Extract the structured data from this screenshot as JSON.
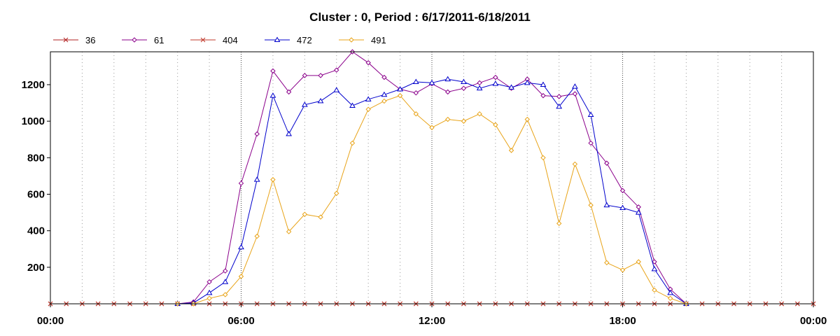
{
  "chart_data": {
    "type": "line",
    "title": "Cluster : 0, Period : 6/17/2011-6/18/2011",
    "xlabel": "",
    "ylabel": "",
    "x_ticks": [
      "00:00",
      "06:00",
      "12:00",
      "18:00",
      "00:00"
    ],
    "y_ticks": [
      "200",
      "400",
      "600",
      "800",
      "1000",
      "1200"
    ],
    "xlim_hours": [
      0,
      24
    ],
    "ylim": [
      0,
      1380
    ],
    "grid": "vertical dotted",
    "legend_position": "top-left",
    "x_hours": [
      0,
      0.5,
      1,
      1.5,
      2,
      2.5,
      3,
      3.5,
      4,
      4.5,
      5,
      5.5,
      6,
      6.5,
      7,
      7.5,
      8,
      8.5,
      9,
      9.5,
      10,
      10.5,
      11,
      11.5,
      12,
      12.5,
      13,
      13.5,
      14,
      14.5,
      15,
      15.5,
      16,
      16.5,
      17,
      17.5,
      18,
      18.5,
      19,
      19.5,
      20,
      20.5,
      21,
      21.5,
      22,
      22.5,
      23,
      23.5,
      24
    ],
    "series": [
      {
        "name": "36",
        "color": "#b22222",
        "marker": "x",
        "values": [
          0,
          0,
          0,
          0,
          0,
          0,
          0,
          0,
          0,
          0,
          0,
          0,
          0,
          0,
          0,
          0,
          0,
          0,
          0,
          0,
          0,
          0,
          0,
          0,
          0,
          0,
          0,
          0,
          0,
          0,
          0,
          0,
          0,
          0,
          0,
          0,
          0,
          0,
          0,
          0,
          0,
          0,
          0,
          0,
          0,
          0,
          0,
          0,
          0
        ]
      },
      {
        "name": "61",
        "color": "#8b008b",
        "marker": "diamond",
        "values": [
          null,
          null,
          null,
          null,
          null,
          null,
          null,
          null,
          0,
          10,
          120,
          180,
          660,
          930,
          1275,
          1160,
          1250,
          1250,
          1280,
          1380,
          1320,
          1240,
          1175,
          1155,
          1205,
          1160,
          1180,
          1210,
          1240,
          1180,
          1230,
          1140,
          1135,
          1150,
          880,
          770,
          620,
          530,
          230,
          80,
          0,
          null,
          null,
          null,
          null,
          null,
          null,
          null,
          null
        ]
      },
      {
        "name": "404",
        "color": "#c0392b",
        "marker": "x",
        "values": [
          0,
          0,
          0,
          0,
          0,
          0,
          0,
          0,
          0,
          0,
          0,
          0,
          0,
          0,
          0,
          0,
          0,
          0,
          0,
          0,
          0,
          0,
          0,
          0,
          0,
          0,
          0,
          0,
          0,
          0,
          0,
          0,
          0,
          0,
          0,
          0,
          0,
          0,
          0,
          0,
          0,
          0,
          0,
          0,
          0,
          0,
          0,
          0,
          0
        ]
      },
      {
        "name": "472",
        "color": "#0000cc",
        "marker": "triangle",
        "values": [
          null,
          null,
          null,
          null,
          null,
          null,
          null,
          null,
          0,
          5,
          60,
          120,
          310,
          680,
          1140,
          930,
          1090,
          1110,
          1170,
          1085,
          1120,
          1145,
          1175,
          1215,
          1210,
          1230,
          1215,
          1180,
          1205,
          1185,
          1210,
          1200,
          1080,
          1190,
          1035,
          540,
          525,
          500,
          190,
          60,
          0,
          null,
          null,
          null,
          null,
          null,
          null,
          null,
          null
        ]
      },
      {
        "name": "491",
        "color": "#e8a317",
        "marker": "diamond",
        "values": [
          null,
          null,
          null,
          null,
          null,
          null,
          null,
          null,
          0,
          0,
          30,
          50,
          150,
          370,
          680,
          395,
          490,
          475,
          605,
          880,
          1065,
          1110,
          1140,
          1040,
          965,
          1010,
          1000,
          1040,
          980,
          840,
          1010,
          800,
          440,
          765,
          540,
          225,
          185,
          230,
          75,
          30,
          0,
          null,
          null,
          null,
          null,
          null,
          null,
          null,
          null
        ]
      }
    ]
  }
}
